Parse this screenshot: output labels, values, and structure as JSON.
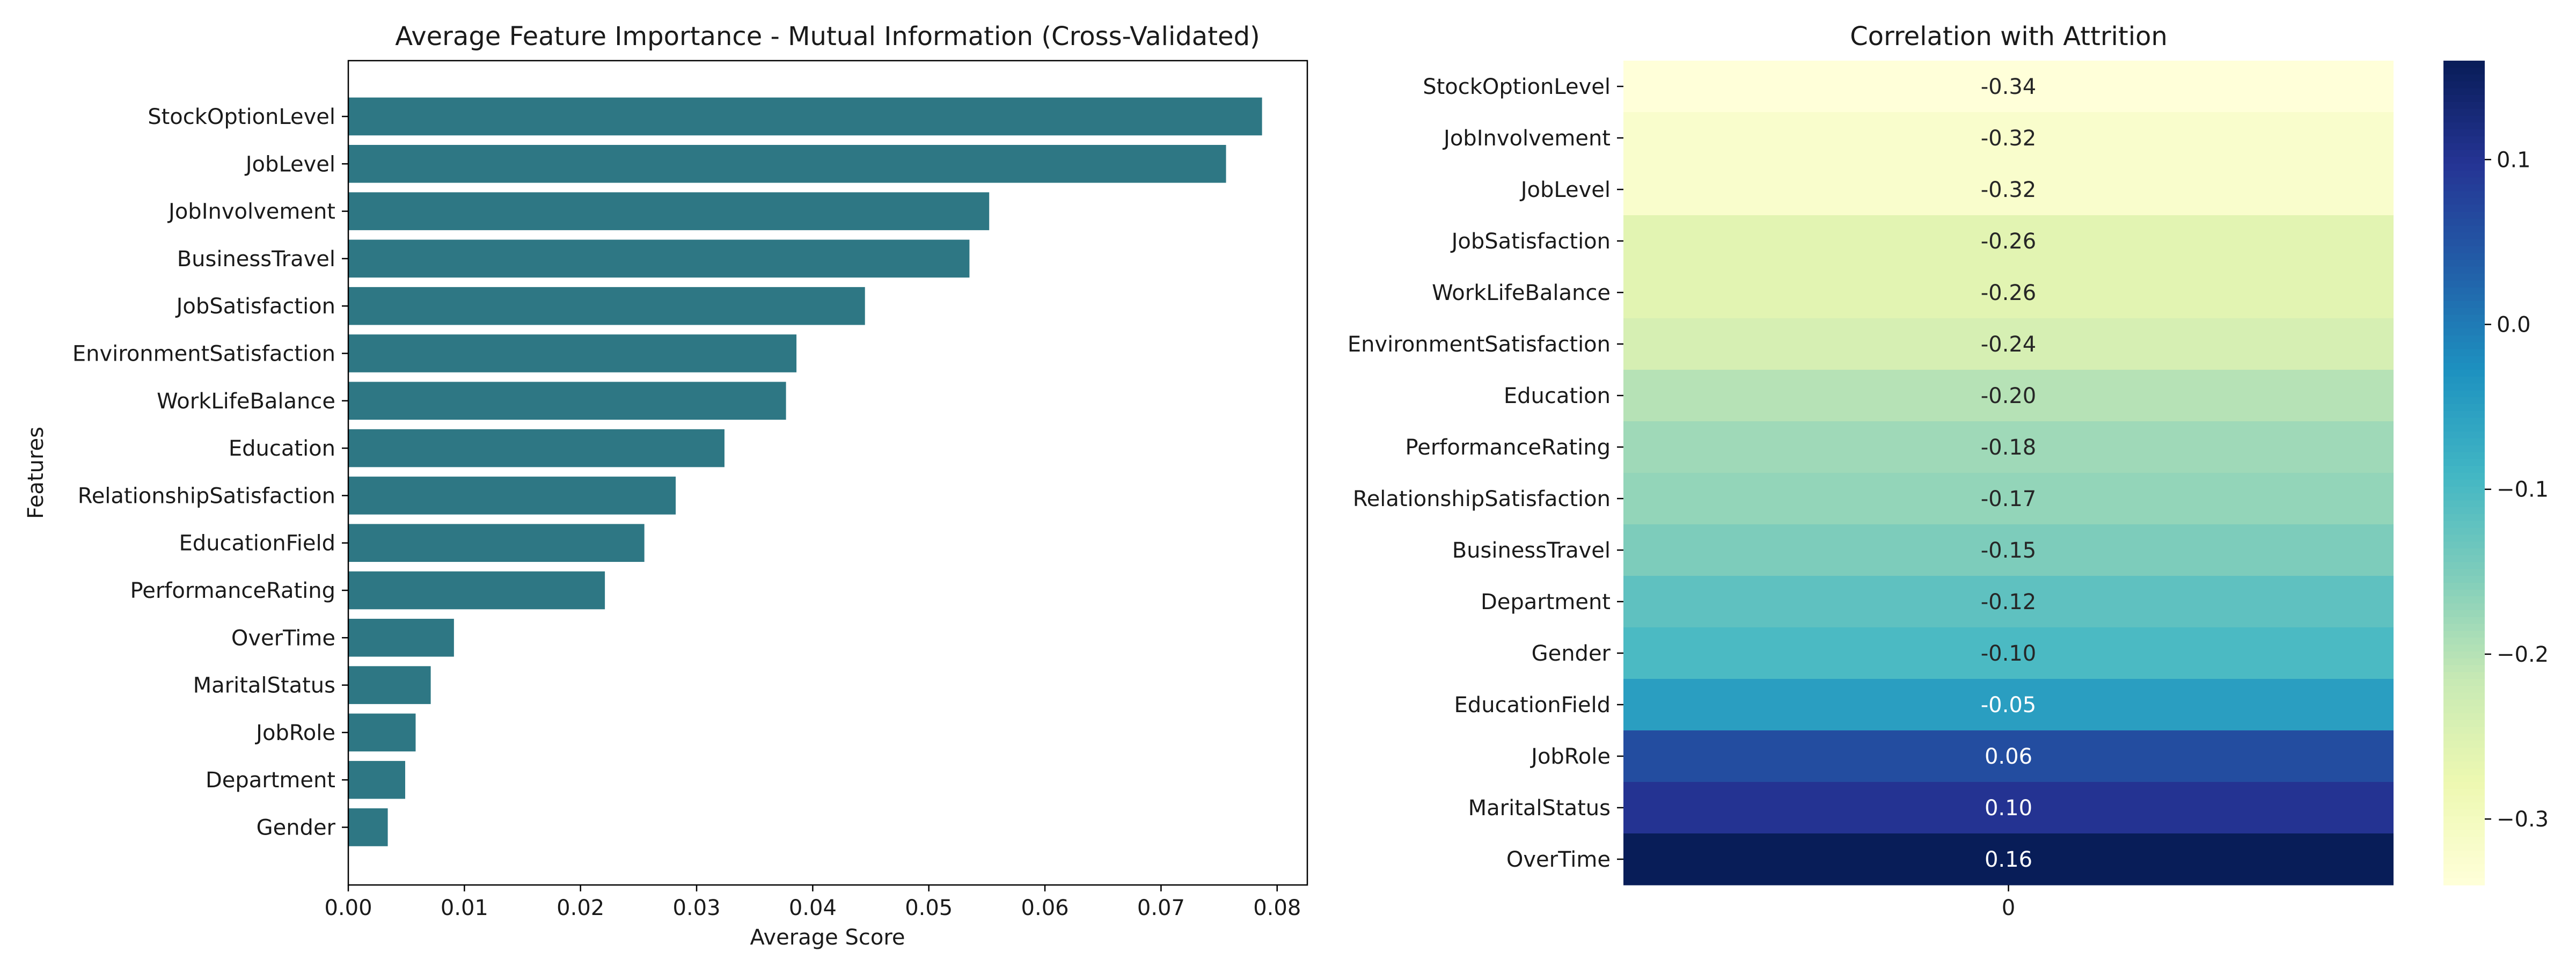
{
  "chart_data": [
    {
      "type": "bar",
      "orientation": "horizontal",
      "title": "Average Feature Importance - Mutual Information (Cross-Validated)",
      "xlabel": "Average Score",
      "ylabel": "Features",
      "bar_color": "#2e7784",
      "categories": [
        "StockOptionLevel",
        "JobLevel",
        "JobInvolvement",
        "BusinessTravel",
        "JobSatisfaction",
        "EnvironmentSatisfaction",
        "WorkLifeBalance",
        "Education",
        "RelationshipSatisfaction",
        "EducationField",
        "PerformanceRating",
        "OverTime",
        "MaritalStatus",
        "JobRole",
        "Department",
        "Gender"
      ],
      "values": [
        0.0787,
        0.0756,
        0.0552,
        0.0535,
        0.0445,
        0.0386,
        0.0377,
        0.0324,
        0.0282,
        0.0255,
        0.0221,
        0.0091,
        0.0071,
        0.0058,
        0.0049,
        0.0034
      ],
      "xlim": [
        0,
        0.0826
      ],
      "xticks": [
        0,
        0.01,
        0.02,
        0.03,
        0.04,
        0.05,
        0.06,
        0.07,
        0.08
      ],
      "xtick_labels": [
        "0.00",
        "0.01",
        "0.02",
        "0.03",
        "0.04",
        "0.05",
        "0.06",
        "0.07",
        "0.08"
      ],
      "grid": false,
      "legend": "none"
    },
    {
      "type": "heatmap",
      "title": "Correlation with Attrition",
      "rows": [
        "StockOptionLevel",
        "JobInvolvement",
        "JobLevel",
        "JobSatisfaction",
        "WorkLifeBalance",
        "EnvironmentSatisfaction",
        "Education",
        "PerformanceRating",
        "RelationshipSatisfaction",
        "BusinessTravel",
        "Department",
        "Gender",
        "EducationField",
        "JobRole",
        "MaritalStatus",
        "OverTime"
      ],
      "columns": [
        "0"
      ],
      "values": [
        -0.34,
        -0.32,
        -0.32,
        -0.26,
        -0.26,
        -0.24,
        -0.2,
        -0.18,
        -0.17,
        -0.15,
        -0.12,
        -0.1,
        -0.05,
        0.06,
        0.1,
        0.16
      ],
      "annotations": [
        "-0.34",
        "-0.32",
        "-0.32",
        "-0.26",
        "-0.26",
        "-0.24",
        "-0.20",
        "-0.18",
        "-0.17",
        "-0.15",
        "-0.12",
        "-0.10",
        "-0.05",
        "0.06",
        "0.10",
        "0.16"
      ],
      "colormap": "YlGnBu",
      "vmin": -0.34,
      "vmax": 0.16,
      "colorbar_ticks": [
        0.1,
        0.0,
        -0.1,
        -0.2,
        -0.3
      ],
      "colorbar_tick_labels": [
        "0.1",
        "0.0",
        "−0.1",
        "−0.2",
        "−0.3"
      ],
      "colorbar_position": "right"
    }
  ]
}
